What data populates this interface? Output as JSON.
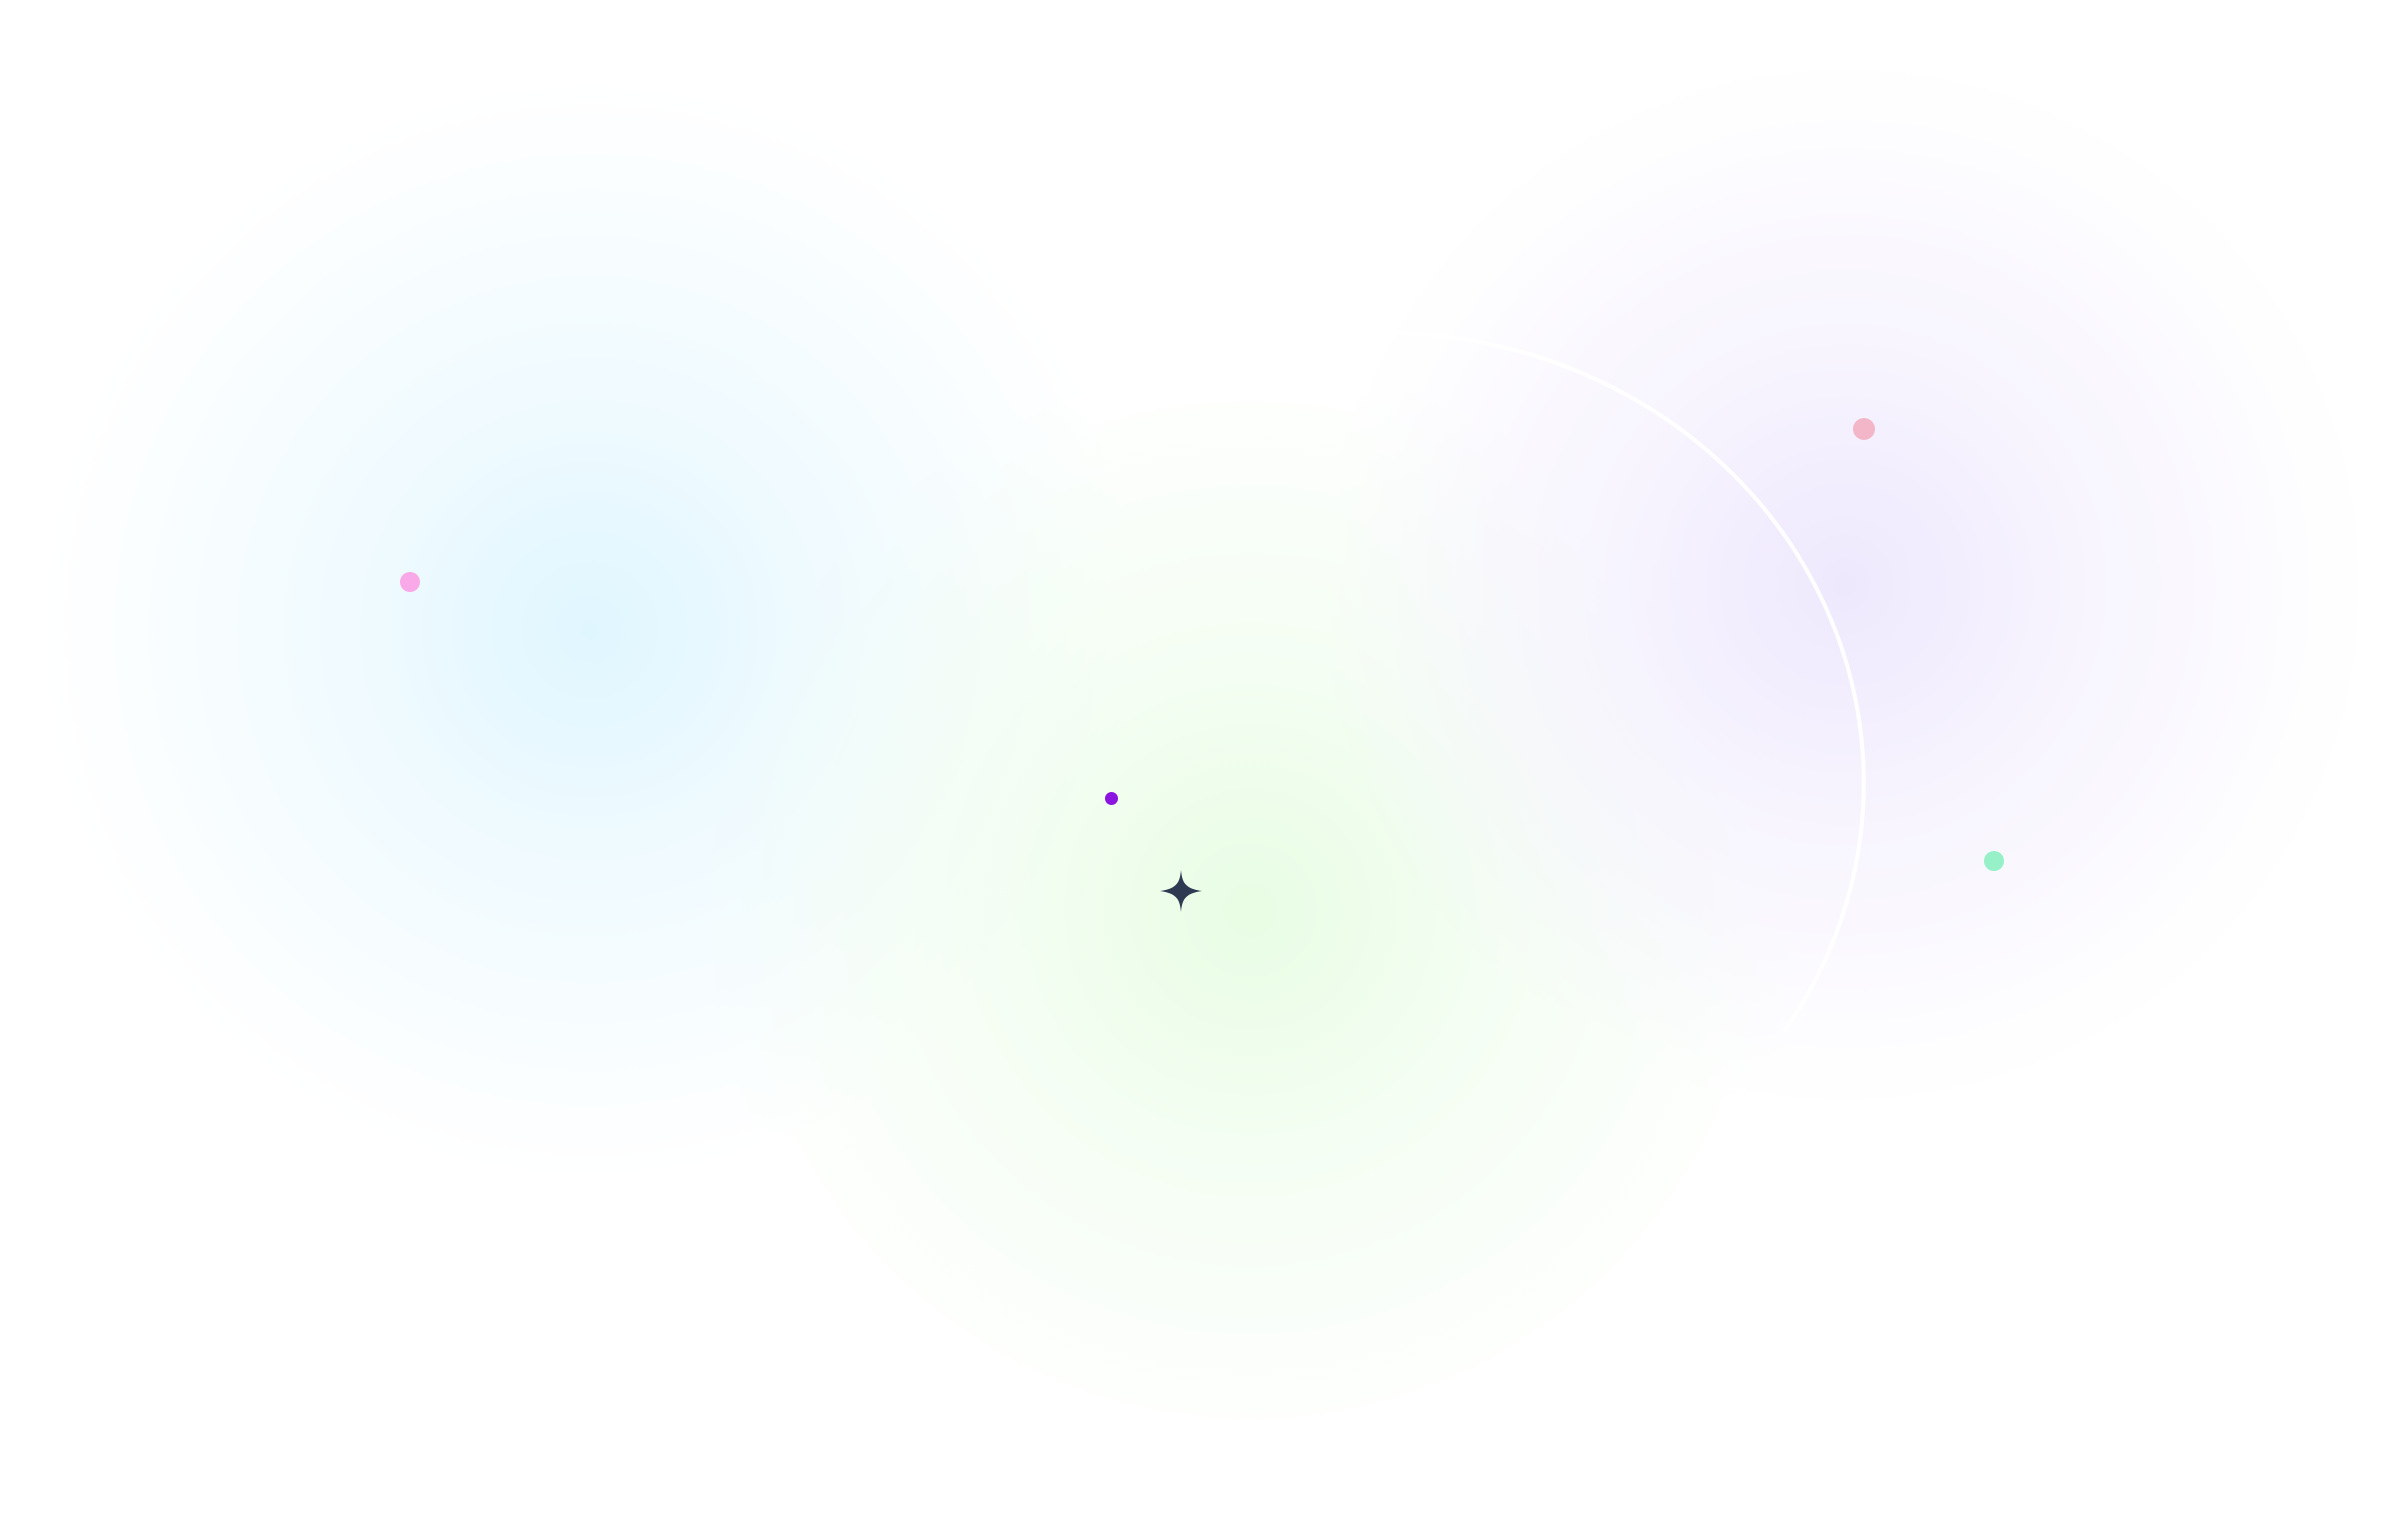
{
  "colors": {
    "background": "#ffffff",
    "blob_cyan": "#e0f6ff",
    "blob_green": "#e8fde4",
    "blob_violet": "#eee8fd",
    "ring_stroke": "#ffffff",
    "dot_pink": "#f9a8e8",
    "dot_purple": "#8b14e0",
    "dot_rose": "#f2b6c8",
    "dot_mint": "#96f0c8",
    "sparkle": "#2e3a52"
  },
  "icons": {
    "sparkle": "four-point-star-icon"
  }
}
